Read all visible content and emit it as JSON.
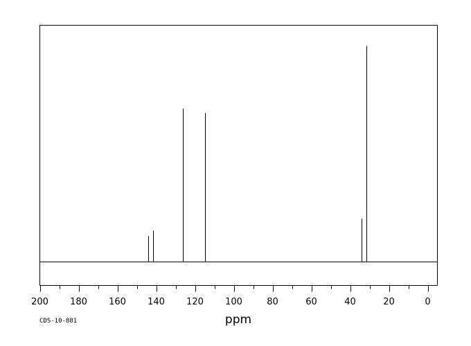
{
  "chart_data": {
    "type": "line",
    "xlabel": "ppm",
    "xlim": [
      200,
      -5
    ],
    "x_ticks": [
      200,
      180,
      160,
      140,
      120,
      100,
      80,
      60,
      40,
      20,
      0
    ],
    "x_reversed": true,
    "grid": false,
    "legend": "none",
    "spectrum_code": "CDS-10-881",
    "series": [
      {
        "peaks": [
          {
            "ppm": 144.1,
            "intensity": 0.12
          },
          {
            "ppm": 141.6,
            "intensity": 0.145
          },
          {
            "ppm": 126.1,
            "intensity": 0.71
          },
          {
            "ppm": 115.0,
            "intensity": 0.69
          },
          {
            "ppm": 34.1,
            "intensity": 0.2
          },
          {
            "ppm": 31.6,
            "intensity": 1.0
          }
        ]
      }
    ]
  },
  "colors": {
    "line": "#000000",
    "frame": "#000000",
    "background": "#ffffff"
  }
}
